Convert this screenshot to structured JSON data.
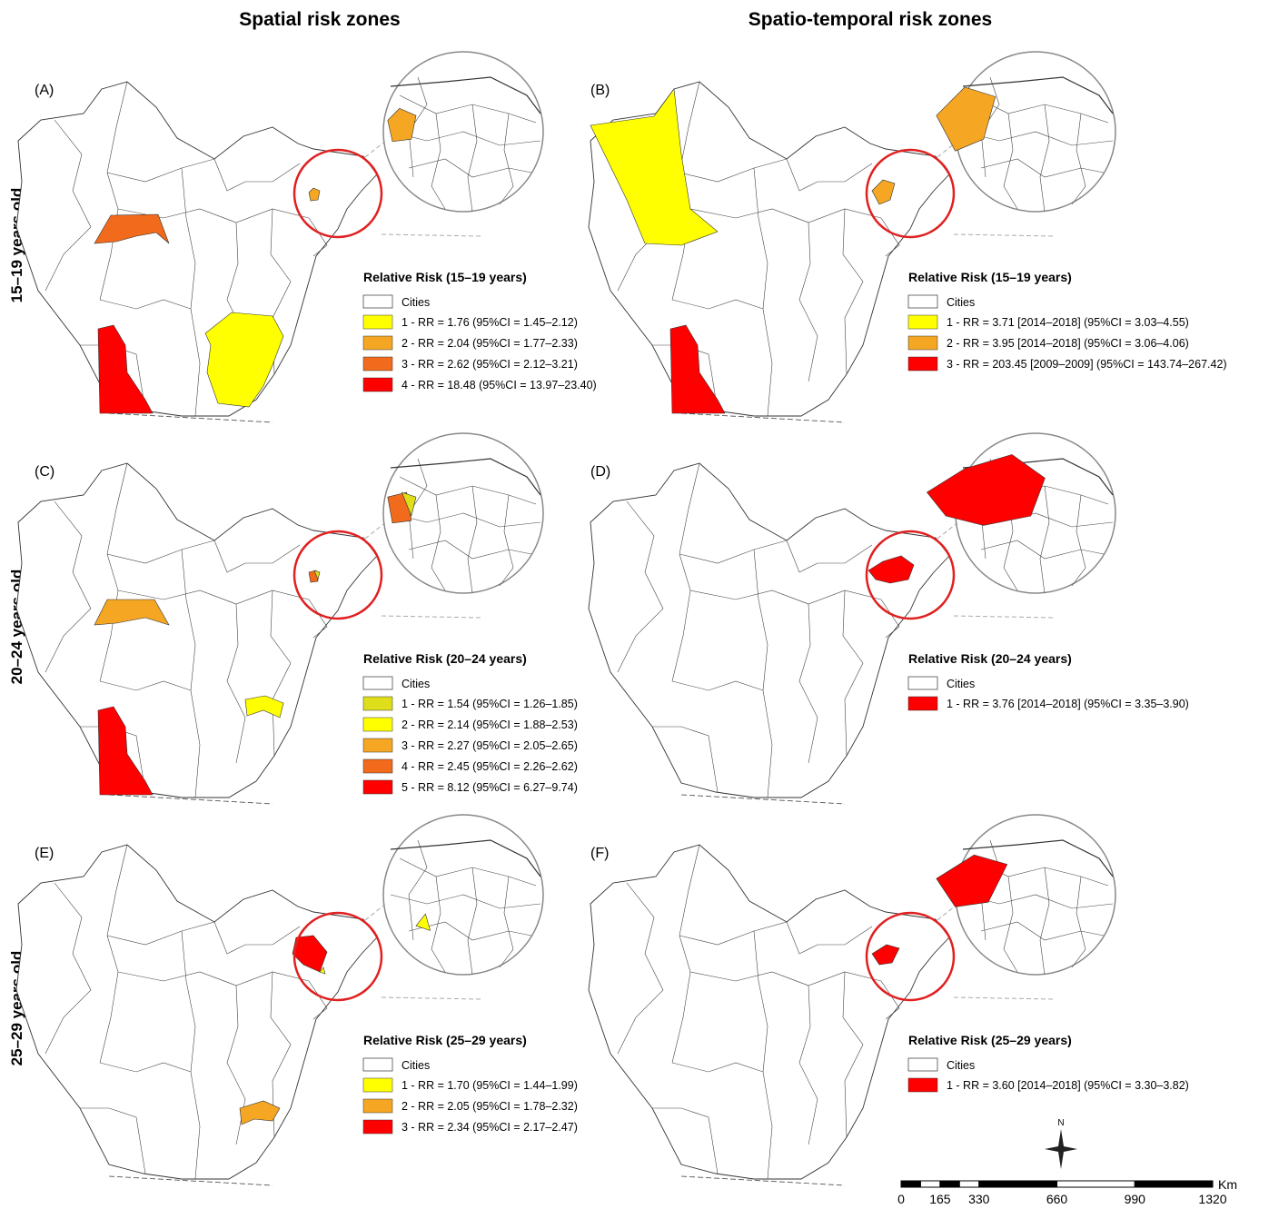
{
  "headers": [
    "Spatial risk zones",
    "Spatio-temporal risk zones"
  ],
  "rows": [
    "15–19 years old",
    "20–24 years old",
    "25–29 years old"
  ],
  "panels": [
    {
      "label": "(A)",
      "legend": {
        "title": "Relative Risk (15–19 years)",
        "cities": "Cities",
        "items": [
          {
            "label": "1 - RR = 1.76 (95%CI = 1.45–2.12)",
            "color": "#ffff00"
          },
          {
            "label": "2 - RR = 2.04 (95%CI = 1.77–2.33)",
            "color": "#f5a623"
          },
          {
            "label": "3 - RR = 2.62 (95%CI = 2.12–3.21)",
            "color": "#f26a1b"
          },
          {
            "label": "4 - RR = 18.48 (95%CI = 13.97–23.40)",
            "color": "#ff0000"
          }
        ]
      }
    },
    {
      "label": "(B)",
      "legend": {
        "title": "Relative Risk (15–19 years)",
        "cities": "Cities",
        "items": [
          {
            "label": "1 - RR = 3.71 [2014–2018] (95%CI = 3.03–4.55)",
            "color": "#ffff00"
          },
          {
            "label": "2 - RR = 3.95 [2014–2018] (95%CI = 3.06–4.06)",
            "color": "#f5a623"
          },
          {
            "label": "3 - RR = 203.45 [2009–2009] (95%CI = 143.74–267.42)",
            "color": "#ff0000"
          }
        ]
      }
    },
    {
      "label": "(C)",
      "legend": {
        "title": "Relative Risk (20–24 years)",
        "cities": "Cities",
        "items": [
          {
            "label": "1 - RR = 1.54 (95%CI = 1.26–1.85)",
            "color": "#dede1a"
          },
          {
            "label": "2 - RR = 2.14 (95%CI = 1.88–2.53)",
            "color": "#ffff00"
          },
          {
            "label": "3 - RR = 2.27 (95%CI = 2.05–2.65)",
            "color": "#f5a623"
          },
          {
            "label": "4 - RR = 2.45 (95%CI = 2.26–2.62)",
            "color": "#f26a1b"
          },
          {
            "label": "5 - RR = 8.12 (95%CI = 6.27–9.74)",
            "color": "#ff0000"
          }
        ]
      }
    },
    {
      "label": "(D)",
      "legend": {
        "title": "Relative Risk (20–24 years)",
        "cities": "Cities",
        "items": [
          {
            "label": "1 - RR = 3.76 [2014–2018] (95%CI = 3.35–3.90)",
            "color": "#ff0000"
          }
        ]
      }
    },
    {
      "label": "(E)",
      "legend": {
        "title": "Relative Risk (25–29 years)",
        "cities": "Cities",
        "items": [
          {
            "label": "1 - RR = 1.70 (95%CI = 1.44–1.99)",
            "color": "#ffff00"
          },
          {
            "label": "2 - RR = 2.05 (95%CI = 1.78–2.32)",
            "color": "#f5a623"
          },
          {
            "label": "3 - RR = 2.34 (95%CI = 2.17–2.47)",
            "color": "#ff0000"
          }
        ]
      }
    },
    {
      "label": "(F)",
      "legend": {
        "title": "Relative Risk (25–29 years)",
        "cities": "Cities",
        "items": [
          {
            "label": "1 - RR = 3.60 [2014–2018] (95%CI = 3.30–3.82)",
            "color": "#ff0000"
          }
        ]
      }
    }
  ],
  "north": "N",
  "scale": {
    "unit": "Km",
    "ticks": [
      0,
      165,
      330,
      660,
      990,
      1320
    ]
  }
}
